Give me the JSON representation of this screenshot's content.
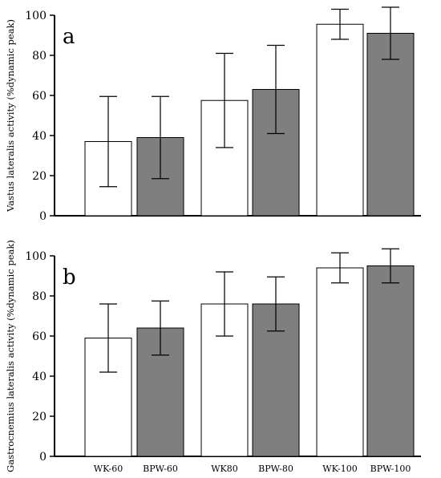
{
  "colors": {
    "wk": "#ffffff",
    "bpw": "#7f7f7f",
    "stroke": "#000000"
  },
  "chart_data": [
    {
      "type": "bar",
      "panel_label": "a",
      "ylabel": "Vastus lateralis activity (%dynamic peak)",
      "ylim": [
        0,
        100
      ],
      "yticks": [
        0,
        20,
        40,
        60,
        80,
        100
      ],
      "grid": false,
      "categories": [
        "WK-60",
        "BPW-60",
        "WK80",
        "BPW-80",
        "WK-100",
        "BPW-100"
      ],
      "values": [
        37,
        39,
        57.5,
        63,
        95.5,
        91
      ],
      "error": [
        22.5,
        20.5,
        23.5,
        22,
        7.5,
        13
      ],
      "bar_colors": [
        "#ffffff",
        "#7f7f7f",
        "#ffffff",
        "#7f7f7f",
        "#ffffff",
        "#7f7f7f"
      ]
    },
    {
      "type": "bar",
      "panel_label": "b",
      "ylabel": "Gastrocnemius lateralis activity (%dynamic peak)",
      "ylim": [
        0,
        100
      ],
      "yticks": [
        0,
        20,
        40,
        60,
        80,
        100
      ],
      "grid": false,
      "categories": [
        "WK-60",
        "BPW-60",
        "WK80",
        "BPW-80",
        "WK-100",
        "BPW-100"
      ],
      "values": [
        59,
        64,
        76,
        76,
        94,
        95
      ],
      "error": [
        17,
        13.5,
        16,
        13.5,
        7.5,
        8.5
      ],
      "bar_colors": [
        "#ffffff",
        "#7f7f7f",
        "#ffffff",
        "#7f7f7f",
        "#ffffff",
        "#7f7f7f"
      ]
    }
  ]
}
